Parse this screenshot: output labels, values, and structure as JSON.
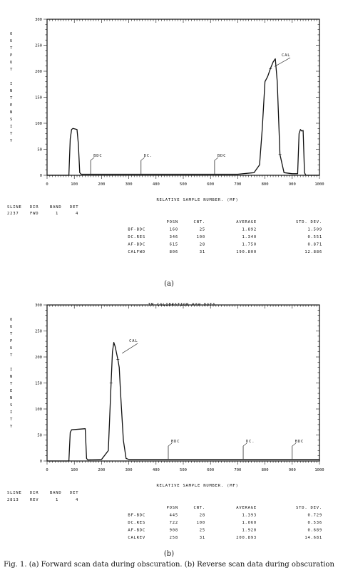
{
  "figure": {
    "caption": "Fig. 1. (a) Forward scan data during obscuration. (b) Reverse scan data during obscuration"
  },
  "chart_data": [
    {
      "type": "line",
      "panel_label": "(a)",
      "title": "",
      "xlabel": "RELATIVE SAMPLE NUMBER. (MF)",
      "ylabel": "OUTPUT INTENSITY",
      "xlim": [
        0,
        1000
      ],
      "ylim": [
        0,
        300
      ],
      "x_ticks": [
        "0",
        "100",
        "200",
        "300",
        "400",
        "500",
        "600",
        "700",
        "800",
        "900",
        "1000"
      ],
      "y_ticks": [
        "0",
        "50",
        "100",
        "150",
        "200",
        "250",
        "300"
      ],
      "series": [
        {
          "x": [
            0,
            80,
            85,
            90,
            95,
            110,
            115,
            120,
            125,
            160,
            300,
            500,
            700,
            760,
            780,
            790,
            800,
            810,
            820,
            830,
            838,
            845,
            855,
            870,
            900,
            920,
            925,
            930,
            935,
            940,
            945,
            950,
            1000
          ],
          "y": [
            0,
            0,
            70,
            88,
            90,
            88,
            60,
            5,
            2,
            2,
            2,
            2,
            2,
            5,
            20,
            90,
            180,
            190,
            205,
            218,
            224,
            180,
            40,
            5,
            3,
            3,
            80,
            88,
            85,
            86,
            5,
            0,
            0
          ]
        }
      ],
      "annotations": [
        {
          "text": "BDC",
          "x": 160,
          "y": 15
        },
        {
          "text": "DC.",
          "x": 345,
          "y": 15
        },
        {
          "text": "BDC",
          "x": 615,
          "y": 15
        },
        {
          "text": "CAL",
          "x": 830,
          "y": 220
        }
      ],
      "header": {
        "columns": [
          "SLINE",
          "DIR",
          "BAND",
          "DET"
        ],
        "values": [
          "2237",
          "FWD",
          "1",
          "4"
        ]
      },
      "table": {
        "columns": [
          "",
          "POSN",
          "CNT.",
          "AVERAGE",
          "STD. DEV."
        ],
        "rows": [
          [
            "BF-BDC",
            "160",
            "25",
            "1.892",
            "1.509"
          ],
          [
            "DC.RES",
            "346",
            "100",
            "1.340",
            "0.551"
          ],
          [
            "AF-BDC",
            "615",
            "28",
            "1.750",
            "0.871"
          ],
          [
            "CALFWD",
            "806",
            "31",
            "190.800",
            "12.886"
          ]
        ]
      }
    },
    {
      "type": "line",
      "panel_label": "(b)",
      "title": "TM CALIBRATION RAW DATA",
      "xlabel": "RELATIVE SAMPLE NUMBER. (MF)",
      "ylabel": "OUTPUT INTENSITY",
      "xlim": [
        0,
        1000
      ],
      "ylim": [
        0,
        300
      ],
      "x_ticks": [
        "0",
        "100",
        "200",
        "300",
        "400",
        "500",
        "600",
        "700",
        "800",
        "900",
        "1000"
      ],
      "y_ticks": [
        "0",
        "50",
        "100",
        "150",
        "200",
        "250",
        "300"
      ],
      "series": [
        {
          "x": [
            0,
            80,
            85,
            90,
            140,
            145,
            150,
            200,
            225,
            235,
            240,
            245,
            250,
            260,
            265,
            270,
            280,
            290,
            300,
            400,
            600,
            800,
            1000
          ],
          "y": [
            0,
            0,
            55,
            60,
            62,
            5,
            2,
            3,
            20,
            150,
            210,
            228,
            220,
            195,
            180,
            130,
            40,
            5,
            3,
            3,
            3,
            3,
            3
          ]
        }
      ],
      "annotations": [
        {
          "text": "CAL",
          "x": 270,
          "y": 218
        },
        {
          "text": "BDC",
          "x": 445,
          "y": 15
        },
        {
          "text": "DC.",
          "x": 720,
          "y": 15
        },
        {
          "text": "BDC",
          "x": 900,
          "y": 15
        }
      ],
      "header": {
        "columns": [
          "SLINE",
          "DIR",
          "BAND",
          "DET"
        ],
        "values": [
          "2813",
          "REV",
          "1",
          "4"
        ]
      },
      "table": {
        "columns": [
          "",
          "POSN",
          "CNT.",
          "AVERAGE",
          "STD. DEV."
        ],
        "rows": [
          [
            "BF-BDC",
            "445",
            "28",
            "1.393",
            "0.729"
          ],
          [
            "DC.RES",
            "722",
            "100",
            "1.060",
            "0.536"
          ],
          [
            "AF-BDC",
            "908",
            "25",
            "1.920",
            "0.689"
          ],
          [
            "CALREV",
            "258",
            "31",
            "200.893",
            "14.681"
          ]
        ]
      }
    }
  ]
}
